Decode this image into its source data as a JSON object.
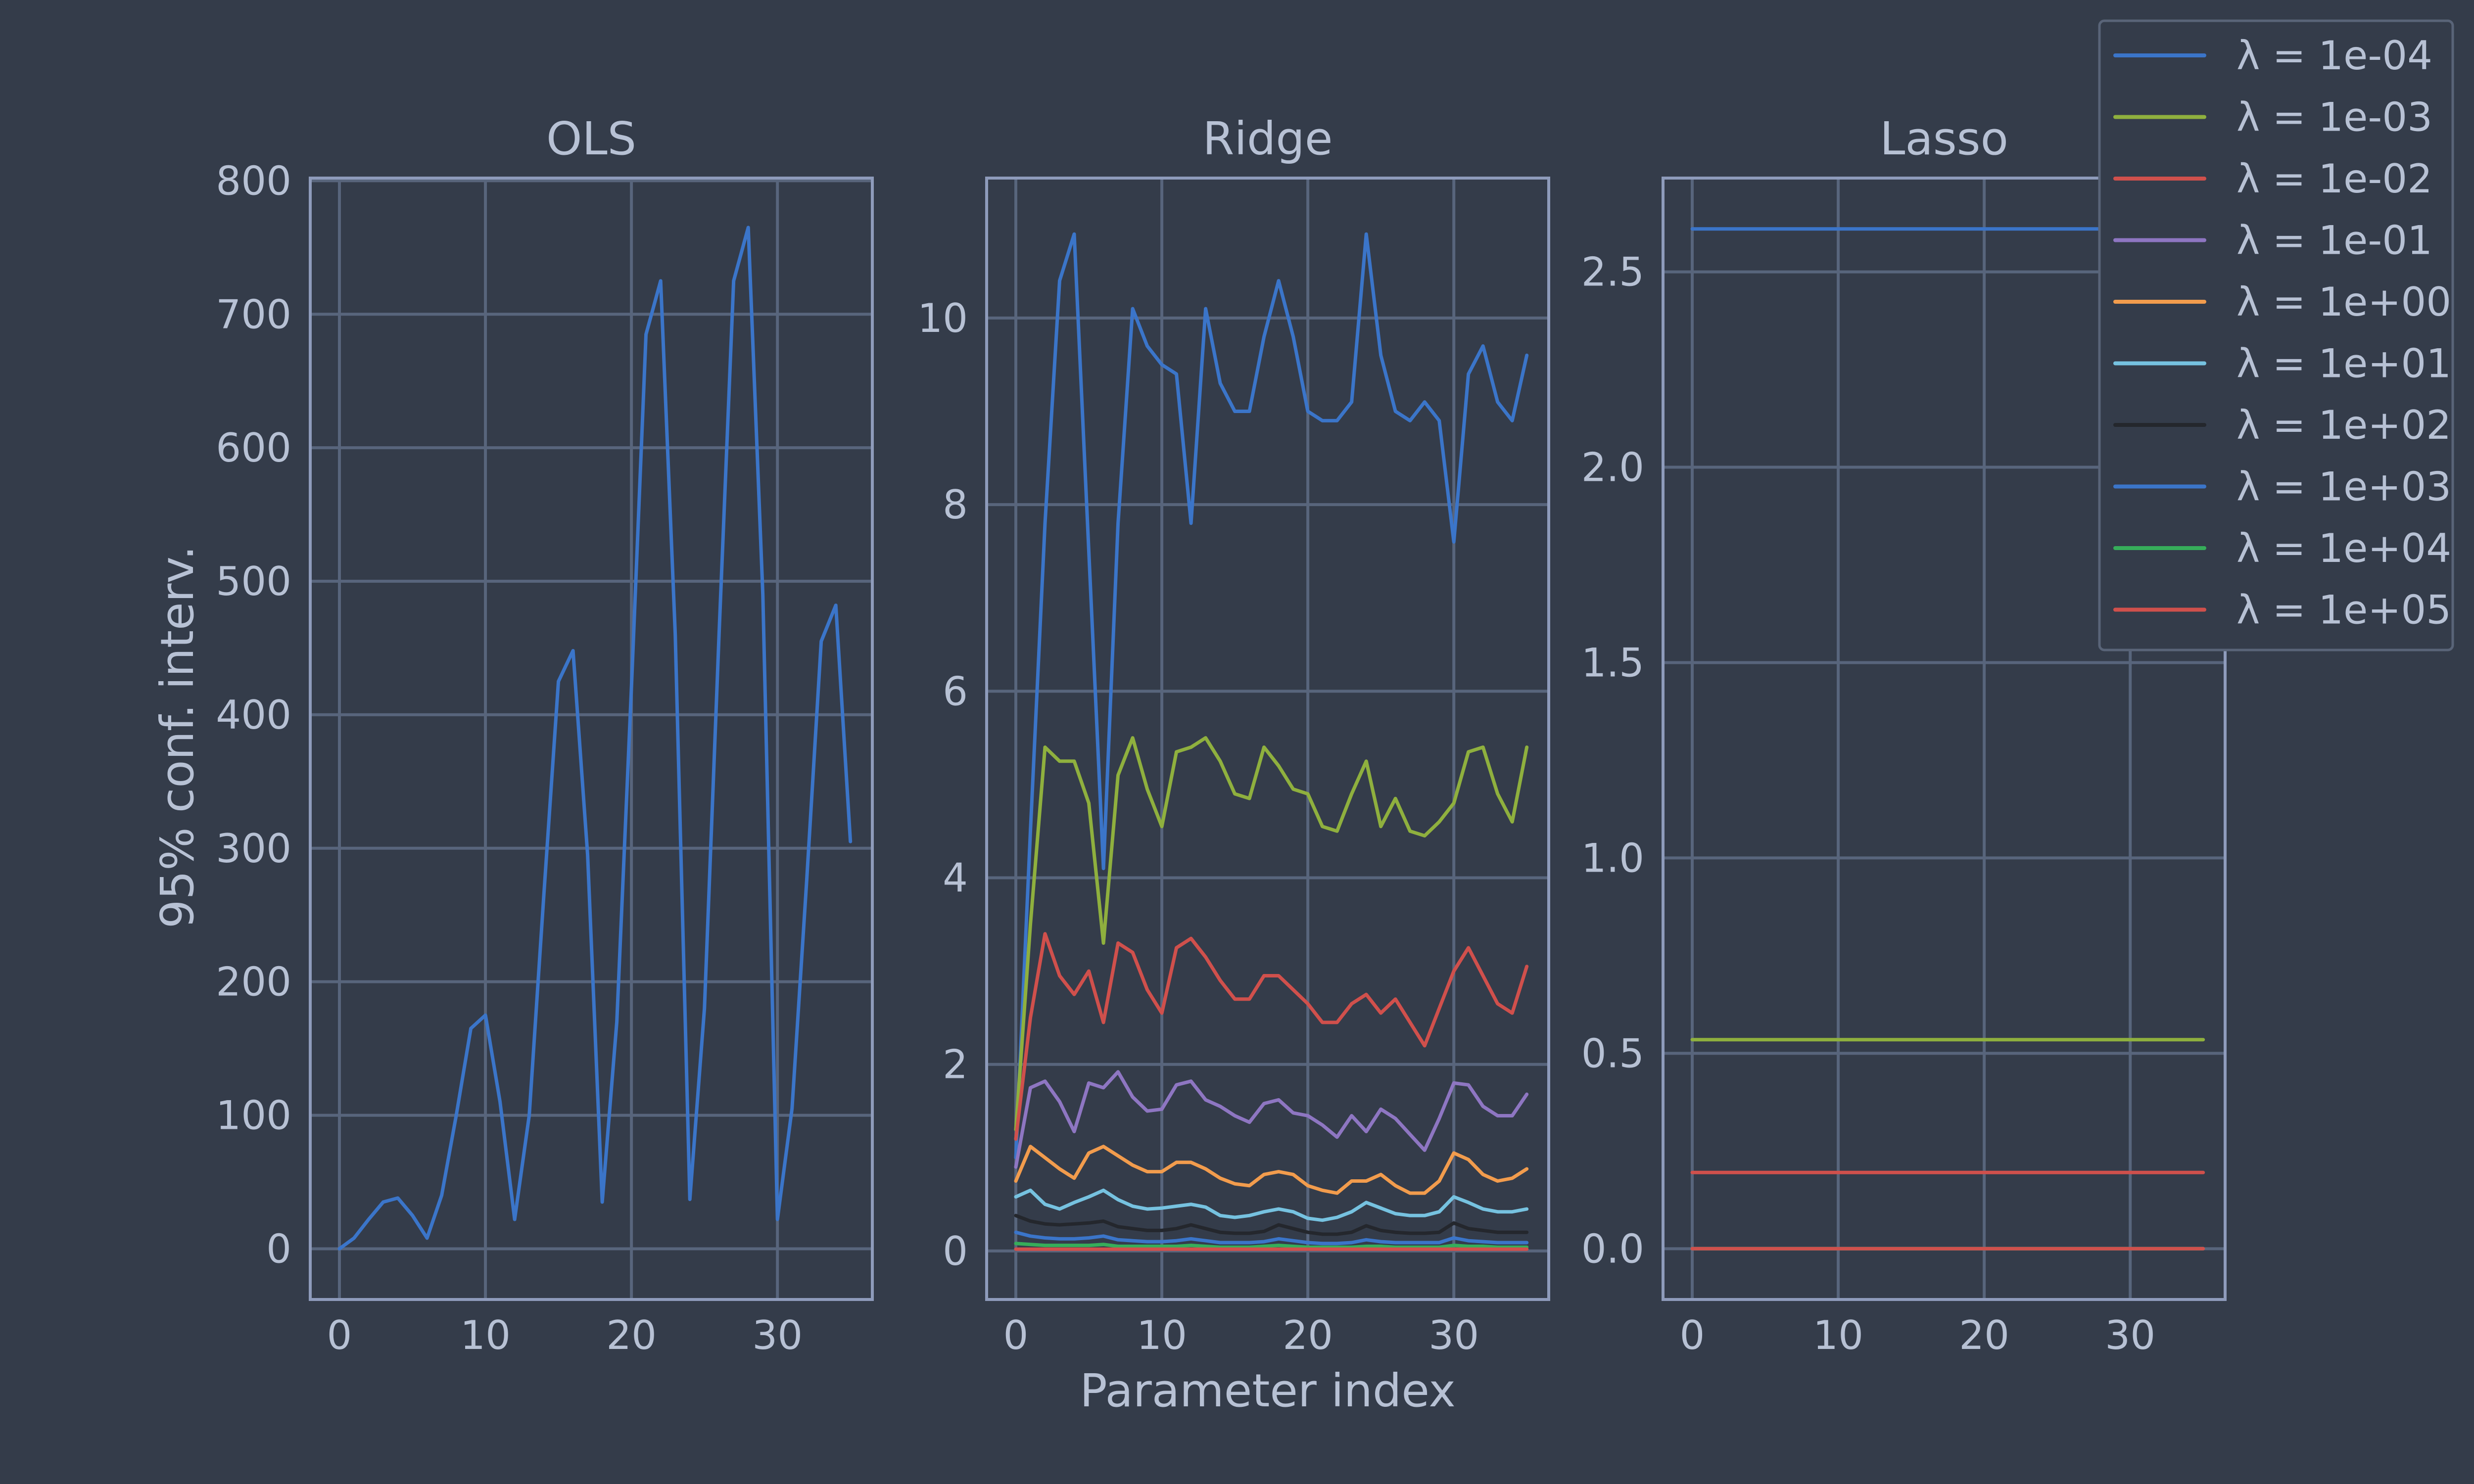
{
  "figure": {
    "background": "#343c4a",
    "text_color": "#b7c1d4",
    "grid_color": "#58657c",
    "frame_color": "#8e9bbb",
    "ylabel": "95% conf. interv.",
    "xlabel": "Parameter index",
    "legend_placement": "upper-right"
  },
  "legend": {
    "entries": [
      {
        "label": "λ = 1e-04",
        "color": "#3b75c9"
      },
      {
        "label": "λ = 1e-03",
        "color": "#8fb03e"
      },
      {
        "label": "λ = 1e-02",
        "color": "#d0504c"
      },
      {
        "label": "λ = 1e-01",
        "color": "#8e76c2"
      },
      {
        "label": "λ = 1e+00",
        "color": "#f29c4d"
      },
      {
        "label": "λ = 1e+01",
        "color": "#76c2e0"
      },
      {
        "label": "λ = 1e+02",
        "color": "#24272d"
      },
      {
        "label": "λ = 1e+03",
        "color": "#3b75c9"
      },
      {
        "label": "λ = 1e+04",
        "color": "#36ad5a"
      },
      {
        "label": "λ = 1e+05",
        "color": "#d0504c"
      }
    ]
  },
  "chart_data": [
    {
      "type": "line",
      "title": "OLS",
      "xlabel": "",
      "ylabel": "95% conf. interv.",
      "xlim": [
        -2,
        36.5
      ],
      "ylim": [
        -38,
        802
      ],
      "xticks": [
        0,
        10,
        20,
        30
      ],
      "yticks": [
        0,
        100,
        200,
        300,
        400,
        500,
        600,
        700,
        800
      ],
      "ytick_labels": [
        "0",
        "100",
        "200",
        "300",
        "400",
        "500",
        "600",
        "700",
        "800"
      ],
      "grid": true,
      "series": [
        {
          "color": "#3b75c9",
          "x": [
            0,
            1,
            2,
            3,
            4,
            5,
            6,
            7,
            8,
            9,
            10,
            11,
            12,
            13,
            14,
            15,
            16,
            17,
            18,
            19,
            20,
            21,
            22,
            23,
            24,
            25,
            26,
            27,
            28,
            29,
            30,
            31,
            32,
            33,
            34,
            35
          ],
          "values": [
            0,
            8,
            22,
            35,
            38,
            25,
            8,
            40,
            100,
            165,
            175,
            110,
            22,
            100,
            265,
            425,
            448,
            295,
            35,
            170,
            420,
            685,
            725,
            460,
            37,
            180,
            460,
            725,
            765,
            490,
            22,
            105,
            275,
            455,
            482,
            305
          ]
        }
      ]
    },
    {
      "type": "line",
      "title": "Ridge",
      "xlabel": "Parameter index",
      "ylabel": "",
      "xlim": [
        -2,
        36.5
      ],
      "ylim": [
        -0.52,
        11.5
      ],
      "xticks": [
        0,
        10,
        20,
        30
      ],
      "yticks": [
        0,
        2,
        4,
        6,
        8,
        10
      ],
      "ytick_labels": [
        "0",
        "2",
        "4",
        "6",
        "8",
        "10"
      ],
      "grid": true,
      "series": [
        {
          "color": "#3b75c9",
          "x": [
            0,
            1,
            2,
            3,
            4,
            5,
            6,
            7,
            8,
            9,
            10,
            11,
            12,
            13,
            14,
            15,
            16,
            17,
            18,
            19,
            20,
            21,
            22,
            23,
            24,
            25,
            26,
            27,
            28,
            29,
            30,
            31,
            32,
            33,
            34,
            35
          ],
          "values": [
            1.0,
            4.5,
            7.8,
            10.4,
            10.9,
            7.5,
            4.1,
            7.8,
            10.1,
            9.7,
            9.5,
            9.4,
            7.8,
            10.1,
            9.3,
            9.0,
            9.0,
            9.8,
            10.4,
            9.8,
            9.0,
            8.9,
            8.9,
            9.1,
            10.9,
            9.6,
            9.0,
            8.9,
            9.1,
            8.9,
            7.6,
            9.4,
            9.7,
            9.1,
            8.9,
            9.6
          ]
        },
        {
          "color": "#8fb03e",
          "x": [
            0,
            1,
            2,
            3,
            4,
            5,
            6,
            7,
            8,
            9,
            10,
            11,
            12,
            13,
            14,
            15,
            16,
            17,
            18,
            19,
            20,
            21,
            22,
            23,
            24,
            25,
            26,
            27,
            28,
            29,
            30,
            31,
            32,
            33,
            34,
            35
          ],
          "values": [
            1.3,
            3.5,
            5.4,
            5.25,
            5.25,
            4.8,
            3.3,
            5.1,
            5.5,
            4.95,
            4.55,
            5.35,
            5.4,
            5.5,
            5.25,
            4.9,
            4.85,
            5.4,
            5.2,
            4.95,
            4.9,
            4.55,
            4.5,
            4.9,
            5.25,
            4.55,
            4.85,
            4.5,
            4.45,
            4.6,
            4.8,
            5.35,
            5.4,
            4.9,
            4.6,
            5.4
          ]
        },
        {
          "color": "#d0504c",
          "x": [
            0,
            1,
            2,
            3,
            4,
            5,
            6,
            7,
            8,
            9,
            10,
            11,
            12,
            13,
            14,
            15,
            16,
            17,
            18,
            19,
            20,
            21,
            22,
            23,
            24,
            25,
            26,
            27,
            28,
            29,
            30,
            31,
            32,
            33,
            34,
            35
          ],
          "values": [
            1.2,
            2.5,
            3.4,
            2.95,
            2.75,
            3.0,
            2.45,
            3.3,
            3.2,
            2.8,
            2.55,
            3.25,
            3.35,
            3.15,
            2.9,
            2.7,
            2.7,
            2.95,
            2.95,
            2.8,
            2.65,
            2.45,
            2.45,
            2.65,
            2.75,
            2.55,
            2.7,
            2.45,
            2.2,
            2.6,
            3.0,
            3.25,
            2.95,
            2.65,
            2.55,
            3.05
          ]
        },
        {
          "color": "#8e76c2",
          "x": [
            0,
            1,
            2,
            3,
            4,
            5,
            6,
            7,
            8,
            9,
            10,
            11,
            12,
            13,
            14,
            15,
            16,
            17,
            18,
            19,
            20,
            21,
            22,
            23,
            24,
            25,
            26,
            27,
            28,
            29,
            30,
            31,
            32,
            33,
            34,
            35
          ],
          "values": [
            0.9,
            1.75,
            1.82,
            1.6,
            1.28,
            1.8,
            1.75,
            1.92,
            1.65,
            1.5,
            1.52,
            1.78,
            1.82,
            1.62,
            1.55,
            1.45,
            1.38,
            1.58,
            1.62,
            1.48,
            1.45,
            1.35,
            1.22,
            1.45,
            1.28,
            1.52,
            1.42,
            1.25,
            1.08,
            1.42,
            1.8,
            1.78,
            1.55,
            1.45,
            1.45,
            1.68
          ]
        },
        {
          "color": "#f29c4d",
          "x": [
            0,
            1,
            2,
            3,
            4,
            5,
            6,
            7,
            8,
            9,
            10,
            11,
            12,
            13,
            14,
            15,
            16,
            17,
            18,
            19,
            20,
            21,
            22,
            23,
            24,
            25,
            26,
            27,
            28,
            29,
            30,
            31,
            32,
            33,
            34,
            35
          ],
          "values": [
            0.75,
            1.12,
            1.0,
            0.88,
            0.78,
            1.05,
            1.12,
            1.02,
            0.92,
            0.85,
            0.85,
            0.95,
            0.95,
            0.88,
            0.78,
            0.72,
            0.7,
            0.82,
            0.85,
            0.82,
            0.7,
            0.65,
            0.62,
            0.75,
            0.75,
            0.82,
            0.7,
            0.62,
            0.62,
            0.75,
            1.05,
            0.98,
            0.82,
            0.75,
            0.78,
            0.88
          ]
        },
        {
          "color": "#76c2e0",
          "x": [
            0,
            1,
            2,
            3,
            4,
            5,
            6,
            7,
            8,
            9,
            10,
            11,
            12,
            13,
            14,
            15,
            16,
            17,
            18,
            19,
            20,
            21,
            22,
            23,
            24,
            25,
            26,
            27,
            28,
            29,
            30,
            31,
            32,
            33,
            34,
            35
          ],
          "values": [
            0.58,
            0.65,
            0.5,
            0.45,
            0.52,
            0.58,
            0.65,
            0.55,
            0.48,
            0.45,
            0.46,
            0.48,
            0.5,
            0.47,
            0.38,
            0.36,
            0.38,
            0.42,
            0.45,
            0.42,
            0.35,
            0.33,
            0.36,
            0.42,
            0.52,
            0.46,
            0.4,
            0.38,
            0.38,
            0.42,
            0.58,
            0.52,
            0.45,
            0.42,
            0.42,
            0.45
          ]
        },
        {
          "color": "#24272d",
          "x": [
            0,
            1,
            2,
            3,
            4,
            5,
            6,
            7,
            8,
            9,
            10,
            11,
            12,
            13,
            14,
            15,
            16,
            17,
            18,
            19,
            20,
            21,
            22,
            23,
            24,
            25,
            26,
            27,
            28,
            29,
            30,
            31,
            32,
            33,
            34,
            35
          ],
          "values": [
            0.38,
            0.32,
            0.29,
            0.28,
            0.29,
            0.3,
            0.32,
            0.26,
            0.24,
            0.22,
            0.22,
            0.24,
            0.28,
            0.24,
            0.2,
            0.19,
            0.19,
            0.21,
            0.28,
            0.24,
            0.2,
            0.18,
            0.18,
            0.2,
            0.27,
            0.22,
            0.2,
            0.19,
            0.19,
            0.2,
            0.3,
            0.24,
            0.22,
            0.2,
            0.2,
            0.2
          ]
        },
        {
          "color": "#3b75c9",
          "x": [
            0,
            1,
            2,
            3,
            4,
            5,
            6,
            7,
            8,
            9,
            10,
            11,
            12,
            13,
            14,
            15,
            16,
            17,
            18,
            19,
            20,
            21,
            22,
            23,
            24,
            25,
            26,
            27,
            28,
            29,
            30,
            31,
            32,
            33,
            34,
            35
          ],
          "values": [
            0.2,
            0.16,
            0.14,
            0.13,
            0.13,
            0.14,
            0.16,
            0.12,
            0.11,
            0.1,
            0.1,
            0.11,
            0.13,
            0.11,
            0.09,
            0.09,
            0.09,
            0.1,
            0.13,
            0.11,
            0.09,
            0.08,
            0.08,
            0.09,
            0.12,
            0.1,
            0.09,
            0.09,
            0.09,
            0.09,
            0.14,
            0.11,
            0.1,
            0.09,
            0.09,
            0.09
          ]
        },
        {
          "color": "#36ad5a",
          "x": [
            0,
            1,
            2,
            3,
            4,
            5,
            6,
            7,
            8,
            9,
            10,
            11,
            12,
            13,
            14,
            15,
            16,
            17,
            18,
            19,
            20,
            21,
            22,
            23,
            24,
            25,
            26,
            27,
            28,
            29,
            30,
            31,
            32,
            33,
            34,
            35
          ],
          "values": [
            0.08,
            0.07,
            0.06,
            0.06,
            0.06,
            0.06,
            0.07,
            0.05,
            0.05,
            0.05,
            0.05,
            0.05,
            0.06,
            0.05,
            0.04,
            0.04,
            0.04,
            0.05,
            0.06,
            0.05,
            0.04,
            0.04,
            0.04,
            0.04,
            0.05,
            0.05,
            0.04,
            0.04,
            0.04,
            0.04,
            0.06,
            0.05,
            0.05,
            0.04,
            0.04,
            0.04
          ]
        },
        {
          "color": "#d0504c",
          "x": [
            0,
            1,
            2,
            3,
            4,
            5,
            6,
            7,
            8,
            9,
            10,
            11,
            12,
            13,
            14,
            15,
            16,
            17,
            18,
            19,
            20,
            21,
            22,
            23,
            24,
            25,
            26,
            27,
            28,
            29,
            30,
            31,
            32,
            33,
            34,
            35
          ],
          "values": [
            0.02,
            0.02,
            0.02,
            0.02,
            0.02,
            0.02,
            0.02,
            0.02,
            0.02,
            0.02,
            0.02,
            0.02,
            0.02,
            0.02,
            0.02,
            0.02,
            0.02,
            0.02,
            0.02,
            0.02,
            0.02,
            0.02,
            0.02,
            0.02,
            0.02,
            0.02,
            0.02,
            0.02,
            0.02,
            0.02,
            0.02,
            0.02,
            0.02,
            0.02,
            0.02,
            0.02
          ]
        }
      ]
    },
    {
      "type": "line",
      "title": "Lasso",
      "xlabel": "",
      "ylabel": "",
      "xlim": [
        -2,
        36.5
      ],
      "ylim": [
        -0.13,
        2.74
      ],
      "xticks": [
        0,
        10,
        20,
        30
      ],
      "yticks": [
        0,
        0.5,
        1.0,
        1.5,
        2.0,
        2.5
      ],
      "ytick_labels": [
        "0.0",
        "0.5",
        "1.0",
        "1.5",
        "2.0",
        "2.5"
      ],
      "grid": true,
      "series": [
        {
          "color": "#3b75c9",
          "x": [
            0,
            35
          ],
          "values": [
            2.61,
            2.61
          ]
        },
        {
          "color": "#8fb03e",
          "x": [
            0,
            35
          ],
          "values": [
            0.535,
            0.535
          ]
        },
        {
          "color": "#d0504c",
          "x": [
            0,
            35
          ],
          "values": [
            0.195,
            0.195
          ]
        },
        {
          "color": "#8e76c2",
          "x": [
            0,
            35
          ],
          "values": [
            0.0,
            0.0
          ]
        },
        {
          "color": "#f29c4d",
          "x": [
            0,
            35
          ],
          "values": [
            0.0,
            0.0
          ]
        },
        {
          "color": "#76c2e0",
          "x": [
            0,
            35
          ],
          "values": [
            0.0,
            0.0
          ]
        },
        {
          "color": "#24272d",
          "x": [
            0,
            35
          ],
          "values": [
            0.0,
            0.0
          ]
        },
        {
          "color": "#3b75c9",
          "x": [
            0,
            35
          ],
          "values": [
            0.0,
            0.0
          ]
        },
        {
          "color": "#36ad5a",
          "x": [
            0,
            35
          ],
          "values": [
            0.0,
            0.0
          ]
        },
        {
          "color": "#d0504c",
          "x": [
            0,
            35
          ],
          "values": [
            0.0,
            0.0
          ]
        }
      ]
    }
  ]
}
